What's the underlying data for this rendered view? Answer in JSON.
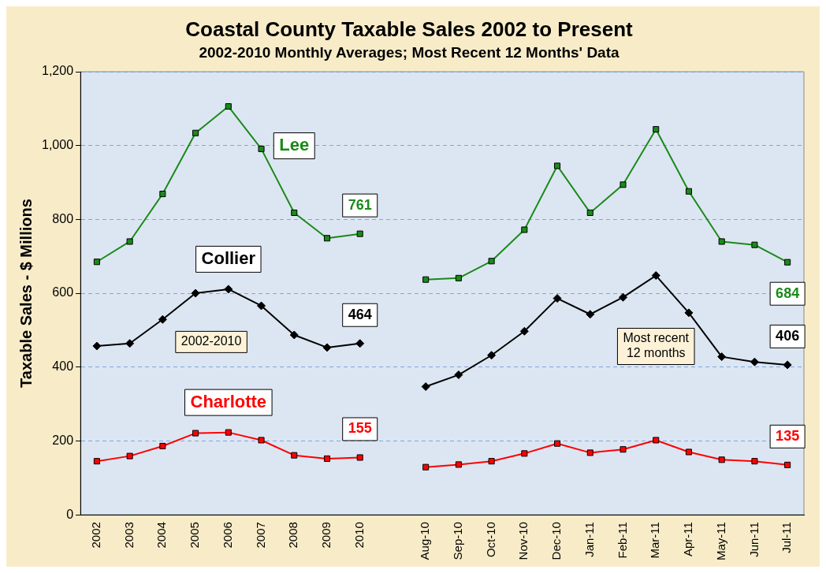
{
  "chart_data": {
    "type": "line",
    "title": "Coastal County Taxable Sales 2002 to Present",
    "subtitle": "2002-2010 Monthly Averages; Most Recent 12 Months' Data",
    "ylabel": "Taxable Sales - $ Millions",
    "categories": [
      "2002",
      "2003",
      "2004",
      "2005",
      "2006",
      "2007",
      "2008",
      "2009",
      "2010",
      null,
      "Aug-10",
      "Sep-10",
      "Oct-10",
      "Nov-10",
      "Dec-10",
      "Jan-11",
      "Feb-11",
      "Mar-11",
      "Apr-11",
      "May-11",
      "Jun-11",
      "Jul-11"
    ],
    "series": [
      {
        "name": "Lee",
        "color": "#1a8a1a",
        "marker": "square",
        "values": [
          685,
          740,
          869,
          1034,
          1106,
          991,
          818,
          749,
          761,
          null,
          637,
          641,
          687,
          772,
          945,
          818,
          894,
          1044,
          876,
          740,
          731,
          684
        ],
        "value_labels": [
          null,
          null,
          null,
          null,
          null,
          null,
          null,
          null,
          "761",
          null,
          null,
          null,
          null,
          null,
          null,
          null,
          null,
          null,
          null,
          null,
          null,
          "684"
        ]
      },
      {
        "name": "Collier",
        "color": "#000000",
        "marker": "diamond",
        "values": [
          457,
          464,
          529,
          600,
          611,
          566,
          487,
          453,
          464,
          null,
          347,
          379,
          432,
          497,
          586,
          543,
          589,
          648,
          547,
          428,
          414,
          406
        ],
        "value_labels": [
          null,
          null,
          null,
          null,
          null,
          null,
          null,
          null,
          "464",
          null,
          null,
          null,
          null,
          null,
          null,
          null,
          null,
          null,
          null,
          null,
          null,
          "406"
        ]
      },
      {
        "name": "Charlotte",
        "color": "#ff0000",
        "marker": "square",
        "values": [
          145,
          159,
          186,
          221,
          223,
          202,
          161,
          152,
          155,
          null,
          129,
          136,
          145,
          166,
          193,
          168,
          177,
          202,
          170,
          149,
          145,
          135
        ],
        "value_labels": [
          null,
          null,
          null,
          null,
          null,
          null,
          null,
          null,
          "155",
          null,
          null,
          null,
          null,
          null,
          null,
          null,
          null,
          null,
          null,
          null,
          null,
          "135"
        ]
      }
    ],
    "annotations": [
      "2002-2010",
      "Most recent 12 months"
    ],
    "ylim": [
      0,
      1200
    ],
    "yticks": [
      0,
      200,
      400,
      600,
      800,
      {
        "value": 1000,
        "label": "1,000"
      },
      {
        "value": 1200,
        "label": "1,200"
      }
    ],
    "grid": "y",
    "legend": false
  }
}
